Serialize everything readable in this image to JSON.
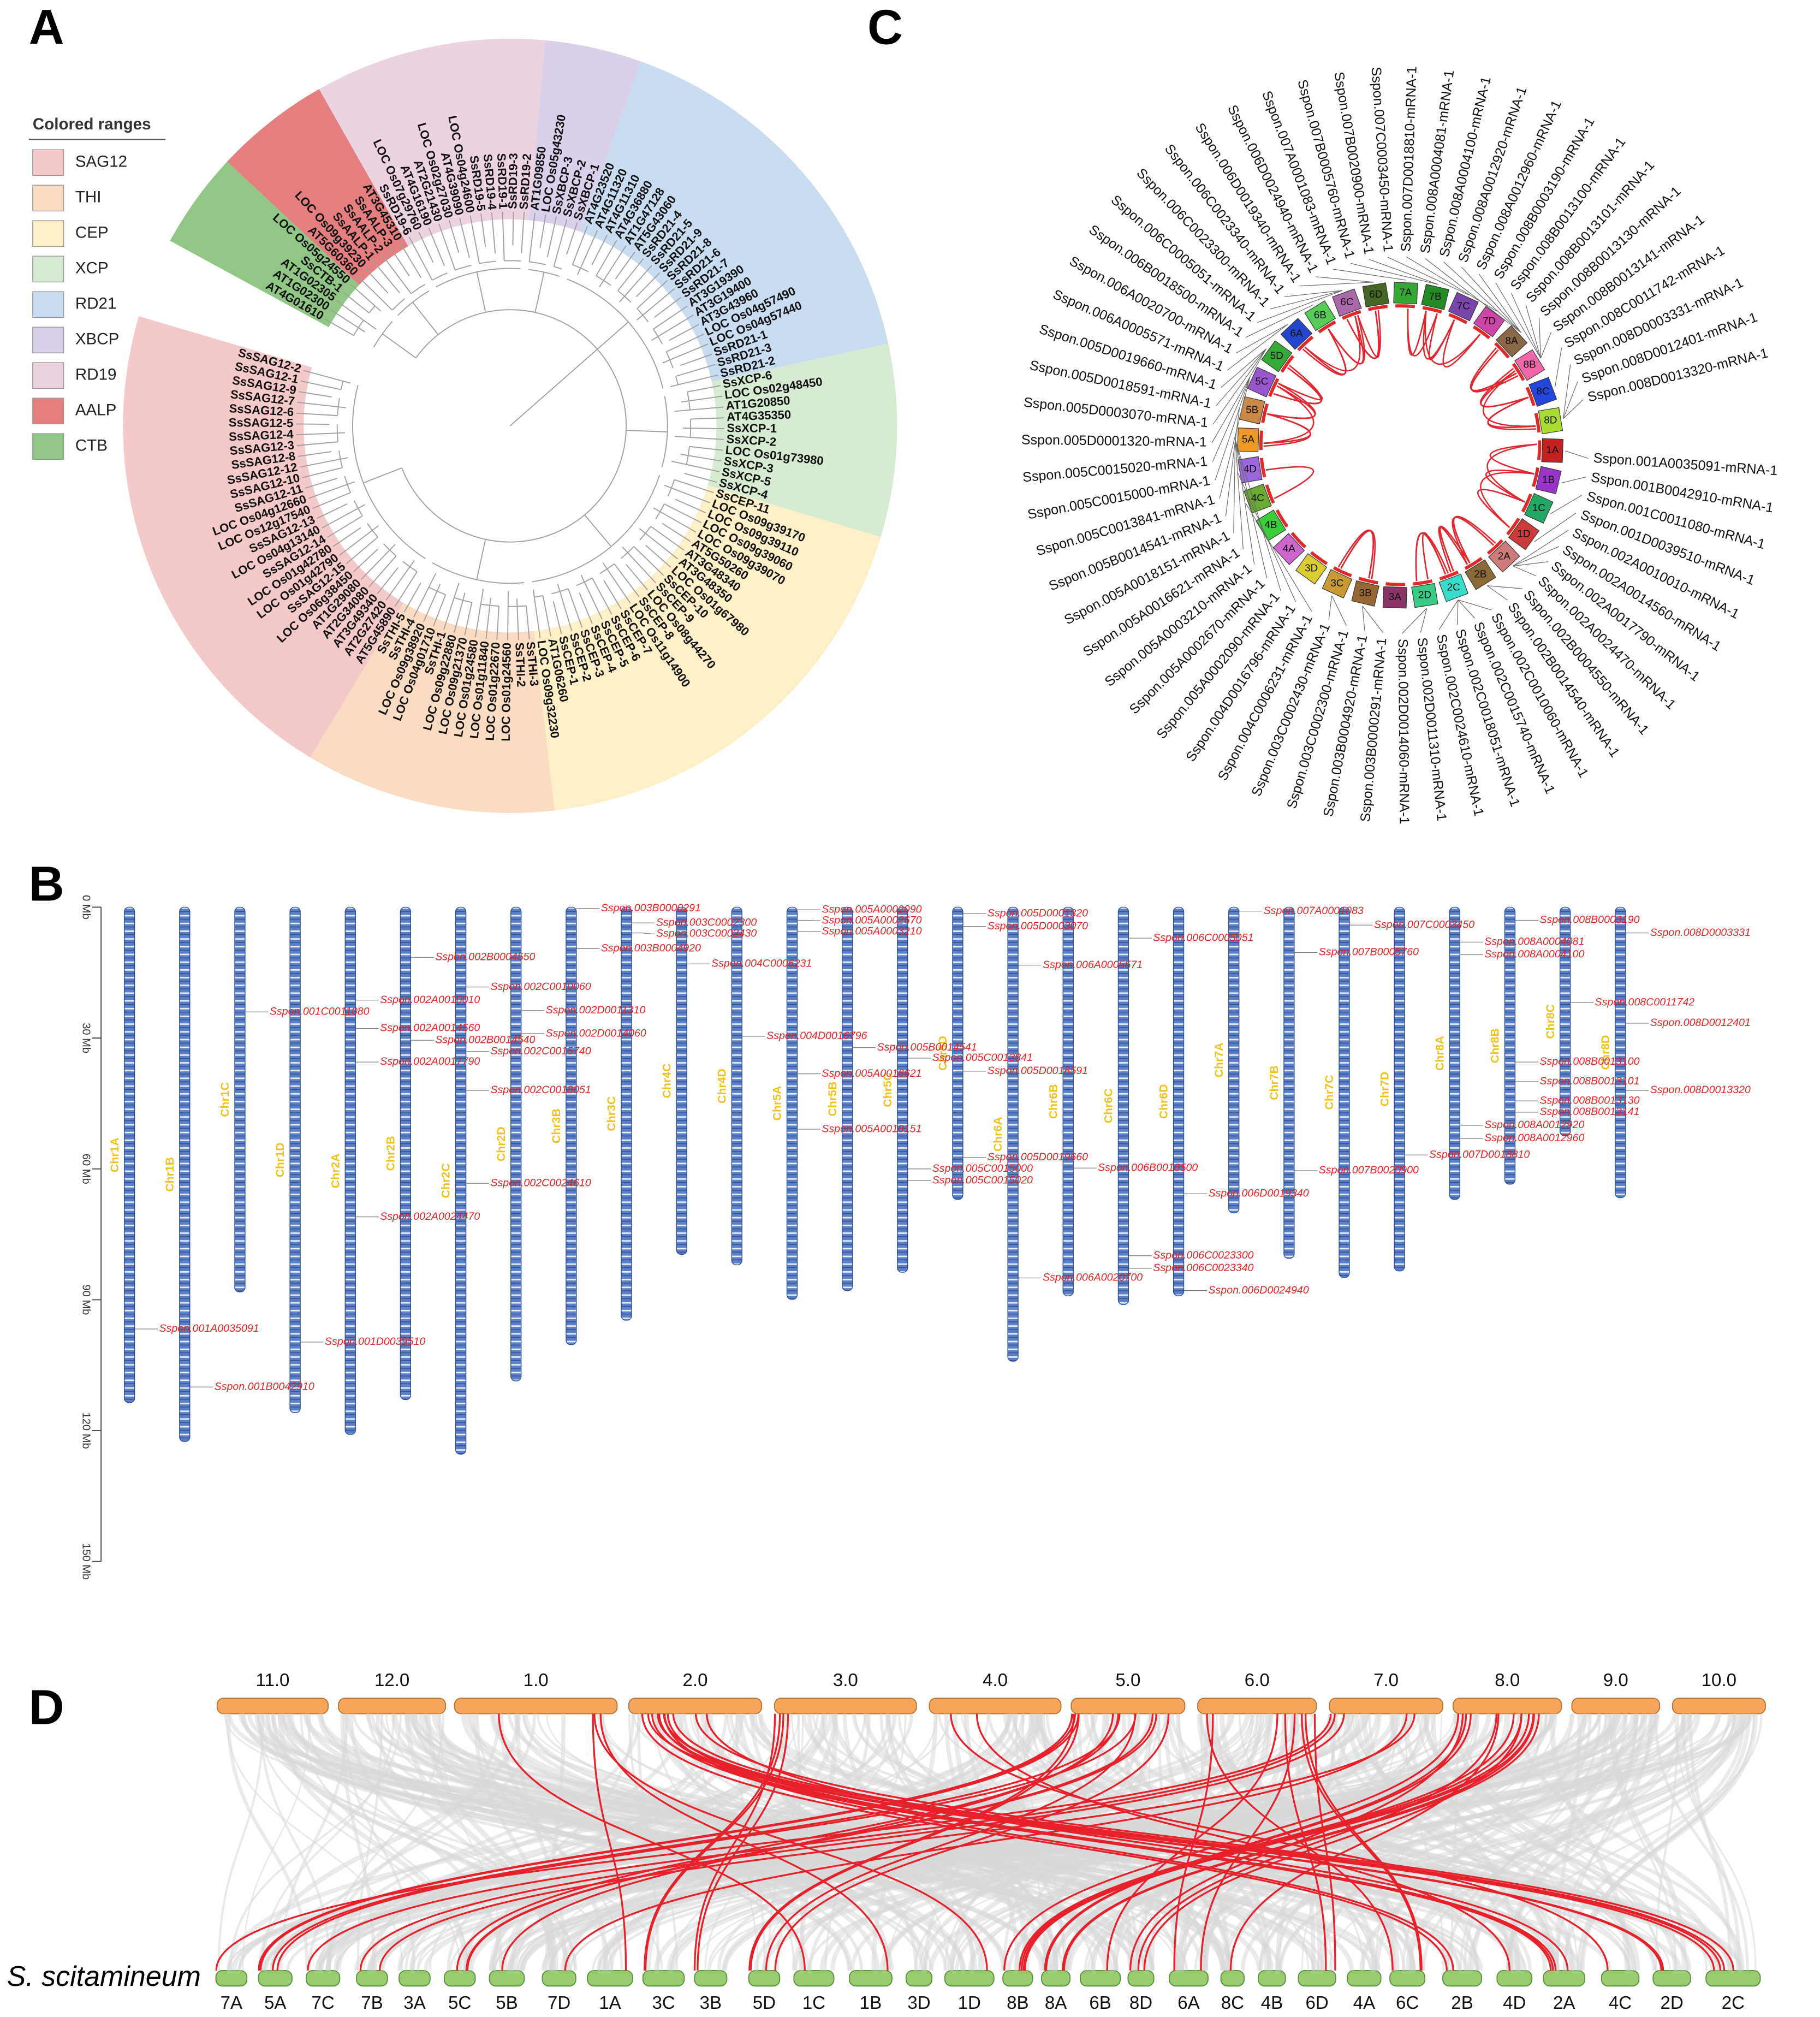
{
  "panel_labels": [
    "A",
    "B",
    "C",
    "D"
  ],
  "tree": {
    "legend_title": "Colored ranges",
    "groups": [
      {
        "name": "CTB",
        "color": "#90c785",
        "leaves": [
          "AT4G01610",
          "AT1G02300",
          "AT1G02305",
          "SsCTB-1",
          "LOC Os05g24550"
        ]
      },
      {
        "name": "AALP",
        "color": "#e57f7f",
        "leaves": [
          "AT5G60360",
          "LOC Os09g39230",
          "SsAALP-1",
          "SsAALP-2",
          "SsAALP-3",
          "AT3G45310"
        ]
      },
      {
        "name": "RD19",
        "color": "#ebd3e0",
        "leaves": [
          "SsRD19-6",
          "LOC Os07g29760",
          "AT4G16190",
          "AT2G21430",
          "LOC Os02g27030",
          "AT4G39090",
          "LOC Os04g24600",
          "SsRD19-5",
          "SsRD19-4",
          "SsRD19-1",
          "SsRD19-3",
          "SsRD19-2"
        ]
      },
      {
        "name": "XBCP",
        "color": "#dad0ea",
        "leaves": [
          "AT1G09850",
          "LOC Os05g43230",
          "SsXBCP-3",
          "SsXBCP-2",
          "SsXBCP-1"
        ]
      },
      {
        "name": "RD21",
        "color": "#cadcf0",
        "leaves": [
          "AT4G23520",
          "AT4G11320",
          "AT4G11310",
          "AT4G36880",
          "AT1G47128",
          "AT5G43060",
          "SsRD21-4",
          "SsRD21-5",
          "SsRD21-9",
          "SsRD21-8",
          "SsRD21-6",
          "SsRD21-7",
          "AT3G19390",
          "AT3G19400",
          "AT3G43960",
          "LOC Os04g57490",
          "LOC Os04g57440",
          "SsRD21-1",
          "SsRD21-3",
          "SsRD21-2"
        ]
      },
      {
        "name": "XCP",
        "color": "#d7ebd3",
        "leaves": [
          "SsXCP-6",
          "LOC Os02g48450",
          "AT1G20850",
          "AT4G35350",
          "SsXCP-1",
          "SsXCP-2",
          "LOC Os01g73980",
          "SsXCP-3",
          "SsXCP-5",
          "SsXCP-4"
        ]
      },
      {
        "name": "CEP",
        "color": "#fdf0c6",
        "leaves": [
          "SsCEP-11",
          "LOC Os09g39170",
          "LOC Os09g39110",
          "LOC Os09g39060",
          "LOC Os09g39070",
          "AT5G50260",
          "AT3G48340",
          "AT3G48350",
          "LOC Os01g67980",
          "SsCEP-10",
          "SsCEP-9",
          "LOC Os08g44270",
          "SsCEP-8",
          "LOC Os11g14900",
          "SsCEP-7",
          "SsCEP-6",
          "SsCEP-5",
          "SsCEP-4",
          "SsCEP-3",
          "SsCEP-2",
          "SsCEP-1",
          "AT1G06260",
          "LOC Os09g32230"
        ]
      },
      {
        "name": "THI",
        "color": "#fadcc2",
        "leaves": [
          "SsTHI-3",
          "SsTHI-2",
          "LOC Os01g24560",
          "LOC Os01g22670",
          "LOC Os01g11840",
          "LOC Os01g24580",
          "LOC Os09g21370",
          "LOC Os09g22880",
          "SsTHI-1",
          "LOC Os04g01710",
          "LOC Os09g38920",
          "SsTHI-4",
          "SsTHI-5"
        ]
      },
      {
        "name": "SAG12",
        "color": "#f5c9c9",
        "leaves": [
          "AT5G45890",
          "AT2G27420",
          "AT3G49340",
          "AT2G34080",
          "AT1G29080",
          "LOC Os06g38450",
          "SsSAG12-15",
          "LOC Os01g42790",
          "LOC Os01g42780",
          "SsSAG12-14",
          "LOC Os04g13140",
          "SsSAG12-13",
          "LOC Os12g17540",
          "LOC Os04g12660",
          "SsSAG12-11",
          "SsSAG12-10",
          "SsSAG12-12",
          "SsSAG12-8",
          "SsSAG12-3",
          "SsSAG12-4",
          "SsSAG12-5",
          "SsSAG12-6",
          "SsSAG12-7",
          "SsSAG12-9",
          "SsSAG12-1",
          "SsSAG12-2"
        ]
      }
    ],
    "legend_order": [
      "SAG12",
      "THI",
      "CEP",
      "XCP",
      "RD21",
      "XBCP",
      "RD19",
      "AALP",
      "CTB"
    ]
  },
  "ideogram": {
    "type": "ideogram",
    "ylim": [
      0,
      150
    ],
    "yticks": [
      {
        "value": 0,
        "label": "0 Mb"
      },
      {
        "value": 30,
        "label": "30 Mb"
      },
      {
        "value": 60,
        "label": "60 Mb"
      },
      {
        "value": 90,
        "label": "90 Mb"
      },
      {
        "value": 120,
        "label": "120 Mb"
      },
      {
        "value": 150,
        "label": "150 Mb"
      }
    ],
    "bar_color": "#5a7fc4",
    "label_color": "#f2c21c",
    "gene_color": "#e32424",
    "chromosomes": [
      {
        "name": "Chr1A",
        "length": 113.6
      },
      {
        "name": "Chr1B",
        "length": 122.5
      },
      {
        "name": "Chr1C",
        "length": 88.2
      },
      {
        "name": "Chr1D",
        "length": 115.9
      },
      {
        "name": "Chr2A",
        "length": 120.9
      },
      {
        "name": "Chr2B",
        "length": 112.9
      },
      {
        "name": "Chr2C",
        "length": 125.4
      },
      {
        "name": "Chr2D",
        "length": 108.6
      },
      {
        "name": "Chr3B",
        "length": 100.3
      },
      {
        "name": "Chr3C",
        "length": 94.7
      },
      {
        "name": "Chr4C",
        "length": 79.6
      },
      {
        "name": "Chr4D",
        "length": 82
      },
      {
        "name": "Chr5A",
        "length": 89.9
      },
      {
        "name": "Chr5B",
        "length": 87.9
      },
      {
        "name": "Chr5C",
        "length": 83.7
      },
      {
        "name": "Chr5D",
        "length": 67
      },
      {
        "name": "Chr6A",
        "length": 104.1
      },
      {
        "name": "Chr6B",
        "length": 89.1
      },
      {
        "name": "Chr6C",
        "length": 91.1
      },
      {
        "name": "Chr6D",
        "length": 89.1
      },
      {
        "name": "Chr7A",
        "length": 70.1
      },
      {
        "name": "Chr7B",
        "length": 80.5
      },
      {
        "name": "Chr7C",
        "length": 84.9
      },
      {
        "name": "Chr7D",
        "length": 83.4
      },
      {
        "name": "Chr8A",
        "length": 67
      },
      {
        "name": "Chr8B",
        "length": 63.5
      },
      {
        "name": "Chr8C",
        "length": 52.4
      },
      {
        "name": "Chr8D",
        "length": 66.6
      }
    ],
    "genes": [
      {
        "name": "Sspon.001A0035091",
        "position": 96.7
      },
      {
        "name": "Sspon.001B0042910",
        "position": 110
      },
      {
        "name": "Sspon.001C0011080",
        "position": 24
      },
      {
        "name": "Sspon.001D0039510",
        "position": 99.7
      },
      {
        "name": "Sspon.002A0010010",
        "position": 21.3
      },
      {
        "name": "Sspon.002A0014560",
        "position": 27.8
      },
      {
        "name": "Sspon.002A0017790",
        "position": 35.5
      },
      {
        "name": "Sspon.002A0024470",
        "position": 71
      },
      {
        "name": "Sspon.002B0004550",
        "position": 11.5
      },
      {
        "name": "Sspon.002B0014540",
        "position": 30.5
      },
      {
        "name": "Sspon.002C0010060",
        "position": 18.3
      },
      {
        "name": "Sspon.002C0015740",
        "position": 33.1
      },
      {
        "name": "Sspon.002C0018051",
        "position": 42
      },
      {
        "name": "Sspon.002C0024610",
        "position": 63.3
      },
      {
        "name": "Sspon.002D0011310",
        "position": 23.7
      },
      {
        "name": "Sspon.002D0014060",
        "position": 29
      },
      {
        "name": "Sspon.003B0000291",
        "position": 0.3
      },
      {
        "name": "Sspon.003B0004920",
        "position": 9.5
      },
      {
        "name": "Sspon.003C0002300",
        "position": 3.6
      },
      {
        "name": "Sspon.003C0002430",
        "position": 5.9
      },
      {
        "name": "Sspon.004C0006231",
        "position": 13
      },
      {
        "name": "Sspon.004D0016796",
        "position": 29.6
      },
      {
        "name": "Sspon.005A0002090",
        "position": 0.6
      },
      {
        "name": "Sspon.005A0002670",
        "position": 3
      },
      {
        "name": "Sspon.005A0003210",
        "position": 5.6
      },
      {
        "name": "Sspon.005A0016621",
        "position": 38.2
      },
      {
        "name": "Sspon.005A0018151",
        "position": 50.9
      },
      {
        "name": "Sspon.005B0014541",
        "position": 32.2
      },
      {
        "name": "Sspon.005C0013841",
        "position": 34.6
      },
      {
        "name": "Sspon.005C0015000",
        "position": 60
      },
      {
        "name": "Sspon.005C0015020",
        "position": 62.7
      },
      {
        "name": "Sspon.005D0001320",
        "position": 1.5
      },
      {
        "name": "Sspon.005D0003070",
        "position": 4.4
      },
      {
        "name": "Sspon.005D0018591",
        "position": 37.6
      },
      {
        "name": "Sspon.005D0019660",
        "position": 57.4
      },
      {
        "name": "Sspon.006A0005571",
        "position": 13.3
      },
      {
        "name": "Sspon.006A0020700",
        "position": 85
      },
      {
        "name": "Sspon.006B0018500",
        "position": 59.8
      },
      {
        "name": "Sspon.006C0005051",
        "position": 7.1
      },
      {
        "name": "Sspon.006C0023300",
        "position": 79.9
      },
      {
        "name": "Sspon.006C0023340",
        "position": 82.8
      },
      {
        "name": "Sspon.006D0019340",
        "position": 65.7
      },
      {
        "name": "Sspon.006D0024940",
        "position": 87.9
      },
      {
        "name": "Sspon.007A0001083",
        "position": 0.9
      },
      {
        "name": "Sspon.007B0005760",
        "position": 10.4
      },
      {
        "name": "Sspon.007B0020900",
        "position": 60.4
      },
      {
        "name": "Sspon.007C0003450",
        "position": 4.1
      },
      {
        "name": "Sspon.007D0018810",
        "position": 56.8
      },
      {
        "name": "Sspon.008A0004081",
        "position": 8
      },
      {
        "name": "Sspon.008A0004100",
        "position": 10.9
      },
      {
        "name": "Sspon.008A0012920",
        "position": 50
      },
      {
        "name": "Sspon.008A0012960",
        "position": 53
      },
      {
        "name": "Sspon.008B0003190",
        "position": 3
      },
      {
        "name": "Sspon.008B0013100",
        "position": 35.5
      },
      {
        "name": "Sspon.008B0013101",
        "position": 40
      },
      {
        "name": "Sspon.008B0013130",
        "position": 44.4
      },
      {
        "name": "Sspon.008B0013141",
        "position": 47
      },
      {
        "name": "Sspon.008C0011742",
        "position": 21.9
      },
      {
        "name": "Sspon.008D0003331",
        "position": 5.9
      },
      {
        "name": "Sspon.008D0012401",
        "position": 26.6
      },
      {
        "name": "Sspon.008D0013320",
        "position": 42
      }
    ]
  },
  "circos": {
    "link_color": "#e0262e",
    "chromosomes": [
      {
        "name": "1A",
        "color": "#c62222"
      },
      {
        "name": "1B",
        "color": "#9a34c8"
      },
      {
        "name": "1C",
        "color": "#23a866"
      },
      {
        "name": "1D",
        "color": "#cc3a3a"
      },
      {
        "name": "2A",
        "color": "#cc7a7a"
      },
      {
        "name": "2B",
        "color": "#8a6a36"
      },
      {
        "name": "2C",
        "color": "#38dccb"
      },
      {
        "name": "2D",
        "color": "#38cc88"
      },
      {
        "name": "3A",
        "color": "#8a3468"
      },
      {
        "name": "3B",
        "color": "#986632"
      },
      {
        "name": "3C",
        "color": "#c99a34"
      },
      {
        "name": "3D",
        "color": "#dccc34"
      },
      {
        "name": "4A",
        "color": "#cc66cc"
      },
      {
        "name": "4B",
        "color": "#3acc3a"
      },
      {
        "name": "4C",
        "color": "#68aa34"
      },
      {
        "name": "4D",
        "color": "#9a68dc"
      },
      {
        "name": "5A",
        "color": "#ee9a22"
      },
      {
        "name": "5B",
        "color": "#cc8846"
      },
      {
        "name": "5C",
        "color": "#9a56cc"
      },
      {
        "name": "5D",
        "color": "#36aa36"
      },
      {
        "name": "6A",
        "color": "#2446cc"
      },
      {
        "name": "6B",
        "color": "#58cc58"
      },
      {
        "name": "6C",
        "color": "#aa68aa"
      },
      {
        "name": "6D",
        "color": "#466824"
      },
      {
        "name": "7A",
        "color": "#34aa34"
      },
      {
        "name": "7B",
        "color": "#248a24"
      },
      {
        "name": "7C",
        "color": "#7846aa"
      },
      {
        "name": "7D",
        "color": "#cc46aa"
      },
      {
        "name": "8A",
        "color": "#8a6846"
      },
      {
        "name": "8B",
        "color": "#ee68aa"
      },
      {
        "name": "8C",
        "color": "#2446dc"
      },
      {
        "name": "8D",
        "color": "#aadc34"
      }
    ],
    "genes": [
      "Sspon.001A0035091-mRNA-1",
      "Sspon.001B0042910-mRNA-1",
      "Sspon.001C0011080-mRNA-1",
      "Sspon.001D0039510-mRNA-1",
      "Sspon.002A0010010-mRNA-1",
      "Sspon.002A0014560-mRNA-1",
      "Sspon.002A0017790-mRNA-1",
      "Sspon.002A0024470-mRNA-1",
      "Sspon.002B0004550-mRNA-1",
      "Sspon.002B0014540-mRNA-1",
      "Sspon.002C0010060-mRNA-1",
      "Sspon.002C0015740-mRNA-1",
      "Sspon.002C0018051-mRNA-1",
      "Sspon.002C0024610-mRNA-1",
      "Sspon.002D0011310-mRNA-1",
      "Sspon.002D0014060-mRNA-1",
      "Sspon.003B0000291-mRNA-1",
      "Sspon.003B0004920-mRNA-1",
      "Sspon.003C0002300-mRNA-1",
      "Sspon.003C0002430-mRNA-1",
      "Sspon.004C0006231-mRNA-1",
      "Sspon.004D0016796-mRNA-1",
      "Sspon.005A0002090-mRNA-1",
      "Sspon.005A0002670-mRNA-1",
      "Sspon.005A0003210-mRNA-1",
      "Sspon.005A0016621-mRNA-1",
      "Sspon.005A0018151-mRNA-1",
      "Sspon.005B0014541-mRNA-1",
      "Sspon.005C0013841-mRNA-1",
      "Sspon.005C0015000-mRNA-1",
      "Sspon.005C0015020-mRNA-1",
      "Sspon.005D0001320-mRNA-1",
      "Sspon.005D0003070-mRNA-1",
      "Sspon.005D0018591-mRNA-1",
      "Sspon.005D0019660-mRNA-1",
      "Sspon.006A0005571-mRNA-1",
      "Sspon.006A0020700-mRNA-1",
      "Sspon.006B0018500-mRNA-1",
      "Sspon.006C0005051-mRNA-1",
      "Sspon.006C0023300-mRNA-1",
      "Sspon.006C0023340-mRNA-1",
      "Sspon.006D0019340-mRNA-1",
      "Sspon.006D0024940-mRNA-1",
      "Sspon.007A0001083-mRNA-1",
      "Sspon.007B0005760-mRNA-1",
      "Sspon.007B0020900-mRNA-1",
      "Sspon.007C0003450-mRNA-1",
      "Sspon.007D0018810-mRNA-1",
      "Sspon.008A0004081-mRNA-1",
      "Sspon.008A0004100-mRNA-1",
      "Sspon.008A0012920-mRNA-1",
      "Sspon.008A0012960-mRNA-1",
      "Sspon.008B0003190-mRNA-1",
      "Sspon.008B0013100-mRNA-1",
      "Sspon.008B0013101-mRNA-1",
      "Sspon.008B0013130-mRNA-1",
      "Sspon.008B0013141-mRNA-1",
      "Sspon.008C0011742-mRNA-1",
      "Sspon.008D0003331-mRNA-1",
      "Sspon.008D0012401-mRNA-1",
      "Sspon.008D0013320-mRNA-1"
    ]
  },
  "synteny": {
    "species": "S. scitamineum",
    "top_color": "#f6a65c",
    "bottom_color": "#98cc6e",
    "link_color": "#e8202a",
    "top": [
      "11.0",
      "12.0",
      "1.0",
      "2.0",
      "3.0",
      "4.0",
      "5.0",
      "6.0",
      "7.0",
      "8.0",
      "9.0",
      "10.0"
    ],
    "bottom": [
      "7A",
      "5A",
      "7C",
      "7B",
      "3A",
      "5C",
      "5B",
      "7D",
      "1A",
      "3C",
      "3B",
      "5D",
      "1C",
      "1B",
      "3D",
      "1D",
      "8B",
      "8A",
      "6B",
      "8D",
      "6A",
      "8C",
      "4B",
      "6D",
      "4A",
      "6C",
      "2B",
      "4D",
      "2A",
      "4C",
      "2D",
      "2C"
    ]
  }
}
